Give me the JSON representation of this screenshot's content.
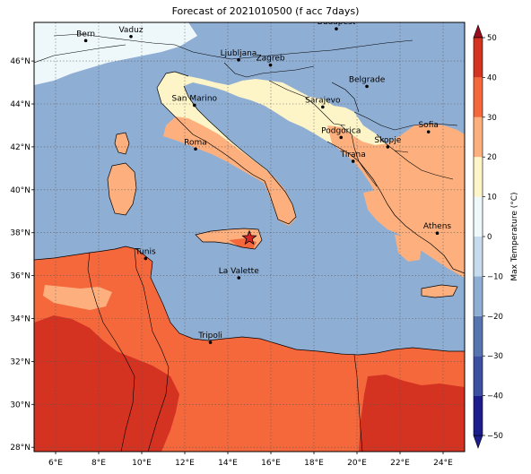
{
  "figure": {
    "title": "Forecast of 2021010500 (f acc 7days)"
  },
  "map": {
    "type": "filled-contour-map",
    "lon_range": [
      5,
      25
    ],
    "lat_range": [
      27.8,
      47.8
    ],
    "lon_ticks": [
      "6°E",
      "8°E",
      "10°E",
      "12°E",
      "14°E",
      "16°E",
      "18°E",
      "20°E",
      "22°E",
      "24°E"
    ],
    "lat_ticks": [
      "28°N",
      "30°N",
      "32°N",
      "34°N",
      "36°N",
      "38°N",
      "40°N",
      "42°N",
      "44°N",
      "46°N"
    ],
    "grid": true,
    "cities": [
      {
        "name": "Bern",
        "lon": 7.4,
        "lat": 46.95
      },
      {
        "name": "Vaduz",
        "lon": 9.5,
        "lat": 47.14
      },
      {
        "name": "Budapest",
        "lon": 19.04,
        "lat": 47.5
      },
      {
        "name": "Ljubljana",
        "lon": 14.5,
        "lat": 46.05
      },
      {
        "name": "Zagreb",
        "lon": 15.98,
        "lat": 45.81
      },
      {
        "name": "Belgrade",
        "lon": 20.46,
        "lat": 44.82
      },
      {
        "name": "San Marino",
        "lon": 12.45,
        "lat": 43.94
      },
      {
        "name": "Sarajevo",
        "lon": 18.41,
        "lat": 43.86
      },
      {
        "name": "Sofia",
        "lon": 23.32,
        "lat": 42.7
      },
      {
        "name": "Podgorica",
        "lon": 19.26,
        "lat": 42.44
      },
      {
        "name": "Skopje",
        "lon": 21.43,
        "lat": 42.0
      },
      {
        "name": "Roma",
        "lon": 12.5,
        "lat": 41.9
      },
      {
        "name": "Tirana",
        "lon": 19.82,
        "lat": 41.33
      },
      {
        "name": "Athens",
        "lon": 23.73,
        "lat": 37.98
      },
      {
        "name": "Tunis",
        "lon": 10.18,
        "lat": 36.8
      },
      {
        "name": "La Valette",
        "lon": 14.51,
        "lat": 35.9
      },
      {
        "name": "Tripoli",
        "lon": 13.19,
        "lat": 32.89
      }
    ],
    "marker": {
      "symbol": "star",
      "lon": 15.0,
      "lat": 37.75,
      "color": "#d62728"
    }
  },
  "colorbar": {
    "label": "Max Temperature (°C)",
    "ticks": [
      "−50",
      "−40",
      "−30",
      "−20",
      "−10",
      "0",
      "10",
      "20",
      "30",
      "40",
      "50"
    ],
    "levels": [
      -50,
      -40,
      -30,
      -20,
      -10,
      0,
      10,
      20,
      30,
      40,
      50
    ],
    "colors": [
      "#1c1c8c",
      "#3b4fa3",
      "#5574b0",
      "#8faed4",
      "#c6dcec",
      "#eef8fb",
      "#fdf4c8",
      "#fdb07e",
      "#f4683c",
      "#d53322",
      "#9a0d1f"
    ],
    "extend": "both"
  },
  "colors": {
    "sea": "#8faed4",
    "land_cool": "#fdf4c8",
    "land_warm": "#fdb07e",
    "land_hot": "#f4683c",
    "land_hottest": "#d53322",
    "cold": "#eef8fb"
  }
}
